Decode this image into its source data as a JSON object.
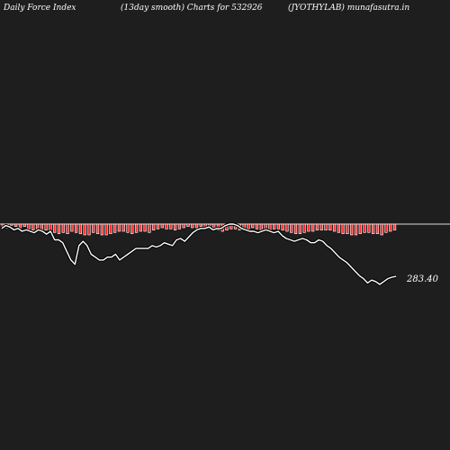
{
  "header": {
    "left": "Daily Force  Index",
    "middle": "(13day smooth) Charts for 532926",
    "right": "(JYOTHYLAB) munafasutra.in"
  },
  "last_price_label": "283.40",
  "colors": {
    "background": "#1e1e1e",
    "text": "#ffffff",
    "zero_line": "#d9d9d9",
    "bars_fill": "#ff2a2a",
    "bars_stroke": "#ffffff",
    "price_line": "#ffffff",
    "price_line_outline": "#000000"
  },
  "chart_data": {
    "type": "bar",
    "title": "",
    "xlabel": "",
    "ylabel": "",
    "grid": false,
    "series": [
      {
        "type": "bar",
        "values": [
          -0.2,
          -0.3,
          -0.1,
          -0.2,
          -0.3,
          -0.2,
          -0.4,
          -0.5,
          -0.6,
          -0.5,
          -0.5,
          -0.6,
          -0.7,
          -0.8,
          -0.7,
          -0.8,
          -0.6,
          -0.7,
          -0.8,
          -0.9,
          -0.9,
          -0.7,
          -0.8,
          -0.9,
          -0.9,
          -0.8,
          -0.7,
          -0.6,
          -0.6,
          -0.7,
          -0.8,
          -0.7,
          -0.6,
          -0.6,
          -0.7,
          -0.5,
          -0.4,
          -0.3,
          -0.4,
          -0.4,
          -0.5,
          -0.4,
          -0.3,
          -0.2,
          -0.3,
          -0.3,
          -0.2,
          -0.3,
          -0.4,
          -0.4,
          -0.5,
          -0.6,
          -0.5,
          -0.4,
          -0.4,
          -0.5,
          -0.5,
          -0.4,
          -0.3,
          -0.4,
          -0.5,
          -0.6,
          -0.5,
          -0.4,
          -0.4,
          -0.5,
          -0.6,
          -0.7,
          -0.8,
          -0.8,
          -0.7,
          -0.6,
          -0.6,
          -0.5,
          -0.5,
          -0.5,
          -0.5,
          -0.6,
          -0.7,
          -0.8,
          -0.8,
          -0.9,
          -0.9,
          -0.8,
          -0.7,
          -0.7,
          -0.8,
          -0.8,
          -0.9,
          -0.7,
          -0.6,
          -0.5
        ]
      },
      {
        "type": "line",
        "values": [
          250,
          248,
          249,
          251,
          250,
          252,
          251,
          252,
          253,
          251,
          252,
          254,
          252,
          258,
          258,
          260,
          266,
          272,
          275,
          262,
          259,
          262,
          268,
          270,
          272,
          272,
          270,
          270,
          268,
          272,
          270,
          268,
          266,
          264,
          264,
          264,
          264,
          262,
          263,
          262,
          260,
          261,
          262,
          258,
          257,
          259,
          256,
          253,
          251,
          250,
          250,
          249,
          251,
          250,
          250,
          248,
          247,
          247,
          248,
          250,
          251,
          252,
          252,
          253,
          252,
          251,
          252,
          253,
          252,
          255,
          257,
          258,
          259,
          258,
          257,
          258,
          260,
          260,
          258,
          259,
          262,
          264,
          267,
          270,
          272,
          274,
          277,
          280,
          283,
          285,
          288,
          286,
          287,
          289,
          287,
          285,
          284,
          283.4
        ]
      }
    ],
    "last_value": 283.4
  }
}
